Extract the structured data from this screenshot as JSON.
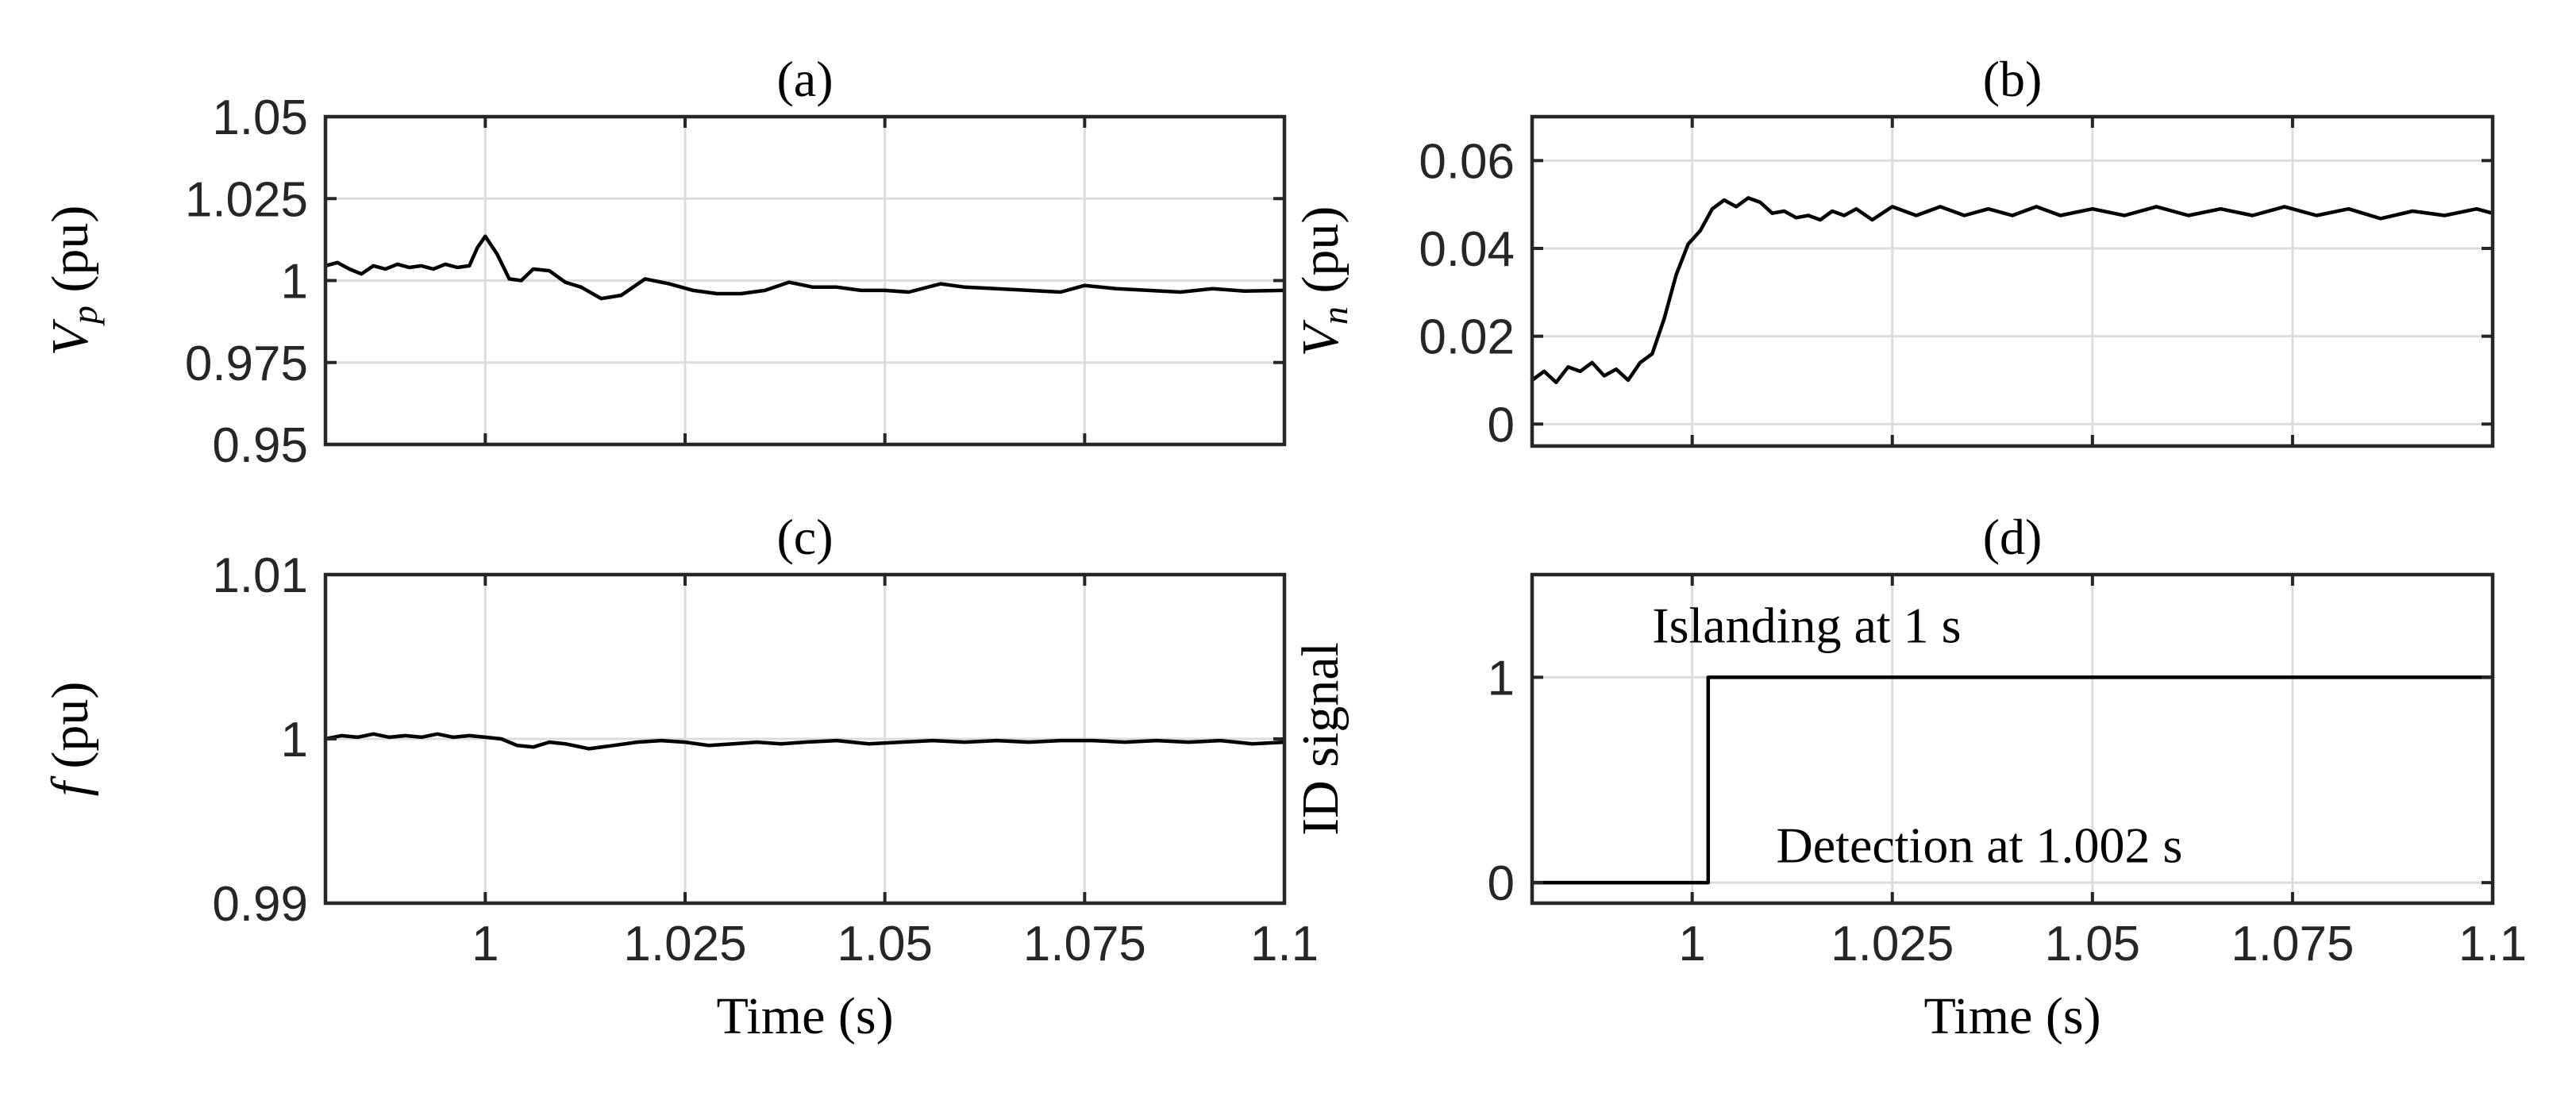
{
  "colors": {
    "line": "#000000",
    "axis": "#262626",
    "grid": "#dcdcdc",
    "text": "#262626"
  },
  "chart_data": [
    {
      "type": "line",
      "panel": "(a)",
      "title": "(a)",
      "xlabel": "",
      "ylabel_var": "V",
      "ylabel_sub": "p",
      "ylabel_unit": " (pu)",
      "xlim": [
        0.98,
        1.1
      ],
      "ylim": [
        0.95,
        1.05
      ],
      "xticks": [
        1,
        1.025,
        1.05,
        1.075,
        1.1
      ],
      "xtick_labels": [
        "",
        "",
        "",
        "",
        ""
      ],
      "yticks": [
        0.95,
        0.975,
        1,
        1.025,
        1.05
      ],
      "ytick_labels": [
        "0.95",
        "0.975",
        "1",
        "1.025",
        "1.05"
      ],
      "grid": true,
      "series": [
        {
          "name": "Vp",
          "x": [
            0.98,
            0.9815,
            0.983,
            0.9845,
            0.986,
            0.9875,
            0.989,
            0.9905,
            0.992,
            0.9935,
            0.995,
            0.9965,
            0.998,
            0.999,
            1.0,
            1.0015,
            1.003,
            1.0045,
            1.006,
            1.008,
            1.01,
            1.012,
            1.0145,
            1.017,
            1.02,
            1.023,
            1.026,
            1.029,
            1.032,
            1.035,
            1.038,
            1.041,
            1.044,
            1.047,
            1.05,
            1.053,
            1.057,
            1.06,
            1.064,
            1.068,
            1.072,
            1.075,
            1.079,
            1.083,
            1.087,
            1.091,
            1.095,
            1.1
          ],
          "y": [
            1.0045,
            1.0055,
            1.0035,
            1.002,
            1.0045,
            1.0035,
            1.005,
            1.004,
            1.0045,
            1.0035,
            1.005,
            1.004,
            1.0045,
            1.01,
            1.0135,
            1.008,
            1.0005,
            1.0,
            1.0035,
            1.003,
            0.9995,
            0.998,
            0.9945,
            0.9955,
            1.0005,
            0.999,
            0.997,
            0.996,
            0.996,
            0.997,
            0.9995,
            0.998,
            0.998,
            0.997,
            0.997,
            0.9965,
            0.999,
            0.998,
            0.9975,
            0.997,
            0.9965,
            0.9985,
            0.9975,
            0.997,
            0.9965,
            0.9975,
            0.9968,
            0.997
          ]
        }
      ]
    },
    {
      "type": "line",
      "panel": "(b)",
      "title": "(b)",
      "xlabel": "",
      "ylabel_var": "V",
      "ylabel_sub": "n",
      "ylabel_unit": " (pu)",
      "xlim": [
        0.98,
        1.1
      ],
      "ylim": [
        -0.005,
        0.07
      ],
      "xticks": [
        1,
        1.025,
        1.05,
        1.075,
        1.1
      ],
      "xtick_labels": [
        "",
        "",
        "",
        "",
        ""
      ],
      "yticks": [
        0,
        0.02,
        0.04,
        0.06
      ],
      "ytick_labels": [
        "0",
        "0.02",
        "0.04",
        "0.06"
      ],
      "grid": true,
      "series": [
        {
          "name": "Vn",
          "x": [
            0.98,
            0.9815,
            0.983,
            0.9845,
            0.986,
            0.9875,
            0.989,
            0.9905,
            0.992,
            0.9935,
            0.995,
            0.9965,
            0.998,
            0.9995,
            1.001,
            1.0025,
            1.004,
            1.0055,
            1.007,
            1.0085,
            1.01,
            1.0115,
            1.013,
            1.0145,
            1.016,
            1.0175,
            1.019,
            1.0205,
            1.0225,
            1.025,
            1.028,
            1.031,
            1.034,
            1.037,
            1.04,
            1.043,
            1.046,
            1.05,
            1.054,
            1.058,
            1.062,
            1.066,
            1.07,
            1.074,
            1.078,
            1.082,
            1.086,
            1.09,
            1.094,
            1.098,
            1.1
          ],
          "y": [
            0.01,
            0.012,
            0.0095,
            0.013,
            0.012,
            0.014,
            0.011,
            0.0125,
            0.01,
            0.014,
            0.016,
            0.024,
            0.034,
            0.041,
            0.044,
            0.049,
            0.051,
            0.0495,
            0.0515,
            0.0505,
            0.048,
            0.0485,
            0.047,
            0.0475,
            0.0465,
            0.0485,
            0.0475,
            0.049,
            0.0465,
            0.0495,
            0.0475,
            0.0495,
            0.0475,
            0.049,
            0.0475,
            0.0495,
            0.0475,
            0.049,
            0.0475,
            0.0495,
            0.0475,
            0.049,
            0.0475,
            0.0495,
            0.0475,
            0.049,
            0.0468,
            0.0485,
            0.0475,
            0.049,
            0.048
          ]
        }
      ]
    },
    {
      "type": "line",
      "panel": "(c)",
      "title": "(c)",
      "xlabel": "Time (s)",
      "ylabel_var": "f",
      "ylabel_sub": "",
      "ylabel_unit": " (pu)",
      "xlim": [
        0.98,
        1.1
      ],
      "ylim": [
        0.99,
        1.01
      ],
      "xticks": [
        1,
        1.025,
        1.05,
        1.075,
        1.1
      ],
      "xtick_labels": [
        "1",
        "1.025",
        "1.05",
        "1.075",
        "1.1"
      ],
      "yticks": [
        0.99,
        1,
        1.01
      ],
      "ytick_labels": [
        "0.99",
        "1",
        "1.01"
      ],
      "grid": true,
      "series": [
        {
          "name": "f",
          "x": [
            0.98,
            0.982,
            0.984,
            0.986,
            0.988,
            0.99,
            0.992,
            0.994,
            0.996,
            0.998,
            1.0,
            1.002,
            1.004,
            1.006,
            1.008,
            1.01,
            1.013,
            1.016,
            1.019,
            1.022,
            1.025,
            1.028,
            1.031,
            1.034,
            1.037,
            1.04,
            1.044,
            1.048,
            1.052,
            1.056,
            1.06,
            1.064,
            1.068,
            1.072,
            1.076,
            1.08,
            1.084,
            1.088,
            1.092,
            1.096,
            1.1
          ],
          "y": [
            1.0,
            1.0002,
            1.0001,
            1.0003,
            1.0001,
            1.0002,
            1.0001,
            1.0003,
            1.0001,
            1.0002,
            1.0001,
            1.0,
            0.9996,
            0.9995,
            0.9998,
            0.9997,
            0.9994,
            0.9996,
            0.9998,
            0.9999,
            0.9998,
            0.9996,
            0.9997,
            0.9998,
            0.9997,
            0.9998,
            0.9999,
            0.9997,
            0.9998,
            0.9999,
            0.9998,
            0.9999,
            0.9998,
            0.9999,
            0.9999,
            0.9998,
            0.9999,
            0.9998,
            0.9999,
            0.9997,
            0.9998
          ]
        }
      ]
    },
    {
      "type": "line",
      "panel": "(d)",
      "title": "(d)",
      "xlabel": "Time (s)",
      "ylabel": "ID signal",
      "xlim": [
        0.98,
        1.1
      ],
      "ylim": [
        -0.1,
        1.5
      ],
      "xticks": [
        1,
        1.025,
        1.05,
        1.075,
        1.1
      ],
      "xtick_labels": [
        "1",
        "1.025",
        "1.05",
        "1.075",
        "1.1"
      ],
      "yticks": [
        0,
        1
      ],
      "ytick_labels": [
        "0",
        "1"
      ],
      "grid": true,
      "annotations": [
        {
          "text": "Islanding at 1 s",
          "x": 0.995,
          "y": 1.17
        },
        {
          "text": "Detection at 1.002 s",
          "x": 1.0105,
          "y": 0.1
        }
      ],
      "series": [
        {
          "name": "ID",
          "x": [
            0.98,
            1.002,
            1.002,
            1.1
          ],
          "y": [
            0,
            0,
            1,
            1
          ]
        }
      ]
    }
  ]
}
